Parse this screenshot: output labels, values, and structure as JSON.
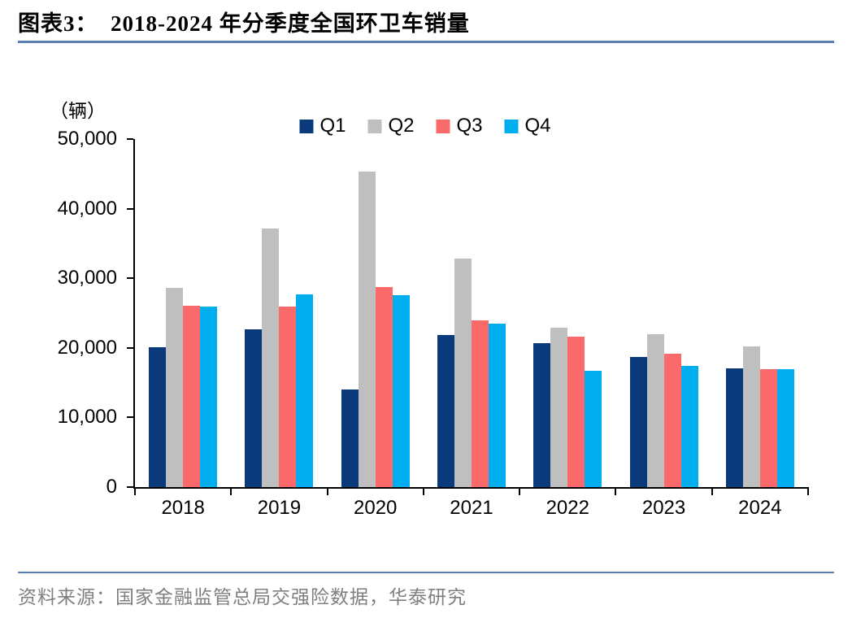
{
  "header": {
    "title": "图表3：  2018-2024 年分季度全国环卫车销量",
    "underline_color": "#5b80b2"
  },
  "chart_data": {
    "type": "bar",
    "title": "2018-2024 年分季度全国环卫车销量",
    "unit_label": "（辆）",
    "xlabel": "",
    "ylabel": "辆",
    "ylim": [
      0,
      50000
    ],
    "grid": false,
    "legend_position": "top",
    "y_tick_labels": [
      "50,000",
      "40,000",
      "30,000",
      "20,000",
      "10,000",
      "0"
    ],
    "y_tick_values": [
      50000,
      40000,
      30000,
      20000,
      10000,
      0
    ],
    "categories": [
      "2018",
      "2019",
      "2020",
      "2021",
      "2022",
      "2023",
      "2024"
    ],
    "series": [
      {
        "name": "Q1",
        "color": "#0b3a7c",
        "values": [
          20100,
          22700,
          14000,
          21900,
          20700,
          18700,
          17100
        ]
      },
      {
        "name": "Q2",
        "color": "#bfbfbf",
        "values": [
          28600,
          37200,
          45300,
          32800,
          22900,
          22000,
          20200
        ]
      },
      {
        "name": "Q3",
        "color": "#fb6a6a",
        "values": [
          26100,
          25900,
          28700,
          23900,
          21600,
          19200,
          16900
        ]
      },
      {
        "name": "Q4",
        "color": "#00aeef",
        "values": [
          25900,
          27700,
          27600,
          23500,
          16700,
          17400,
          16900
        ]
      }
    ]
  },
  "footer": {
    "source_text": "资料来源：国家金融监管总局交强险数据，华泰研究",
    "line_color": "#5b80b2"
  }
}
